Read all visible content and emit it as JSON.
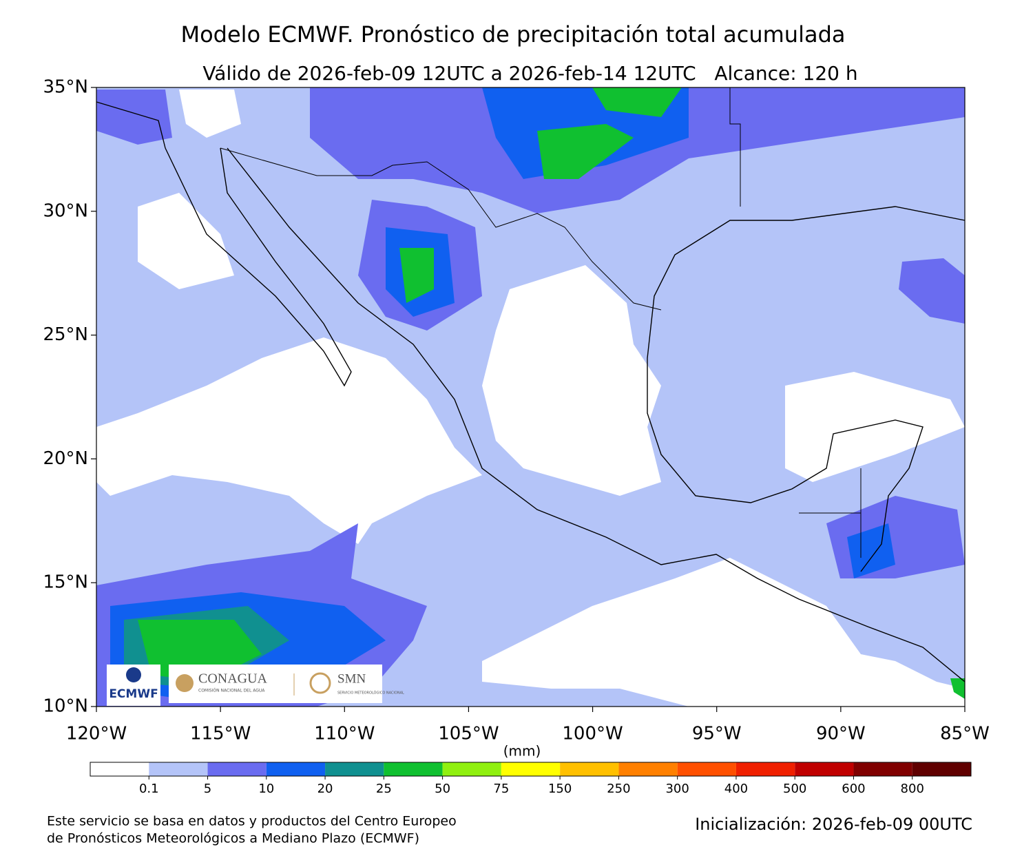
{
  "map": {
    "title": "Modelo ECMWF. Pronóstico de precipitación total acumulada",
    "subtitle": "Válido de 2026-feb-09 12UTC a 2026-feb-14 12UTC   Alcance: 120 h",
    "lat_range": [
      10,
      35
    ],
    "lon_range": [
      -120,
      -85
    ],
    "lat_ticks": [
      {
        "value": 35,
        "label": "35°N"
      },
      {
        "value": 30,
        "label": "30°N"
      },
      {
        "value": 25,
        "label": "25°N"
      },
      {
        "value": 20,
        "label": "20°N"
      },
      {
        "value": 15,
        "label": "15°N"
      },
      {
        "value": 10,
        "label": "10°N"
      }
    ],
    "lon_ticks": [
      {
        "value": -120,
        "label": "120°W"
      },
      {
        "value": -115,
        "label": "115°W"
      },
      {
        "value": -110,
        "label": "110°W"
      },
      {
        "value": -105,
        "label": "105°W"
      },
      {
        "value": -100,
        "label": "100°W"
      },
      {
        "value": -95,
        "label": "95°W"
      },
      {
        "value": -90,
        "label": "90°W"
      },
      {
        "value": -85,
        "label": "85°W"
      }
    ],
    "colorbar": {
      "label": "(mm)",
      "colors": [
        "#ffffff",
        "#b4c4f8",
        "#6a6cf0",
        "#1060f0",
        "#109090",
        "#10c030",
        "#90f010",
        "#ffff00",
        "#ffc000",
        "#ff8000",
        "#ff5000",
        "#f02000",
        "#c00000",
        "#800000",
        "#600000"
      ],
      "ticks": [
        0.1,
        5,
        10,
        20,
        25,
        50,
        75,
        150,
        250,
        300,
        400,
        500,
        600,
        800
      ]
    },
    "logos": {
      "ecmwf": "ECMWF",
      "conagua": "CONAGUA",
      "conagua_sub": "COMISIÓN NACIONAL DEL AGUA",
      "smn": "SMN",
      "smn_sub": "SERVICIO METEOROLÓGICO NACIONAL"
    },
    "footer": {
      "credit_lines": [
        "Este servicio se basa en datos y productos del Centro Europeo",
        "de Pronósticos Meteorológicos a Mediano Plazo (ECMWF)"
      ],
      "init": "Inicialización: 2026-feb-09 00UTC"
    }
  }
}
